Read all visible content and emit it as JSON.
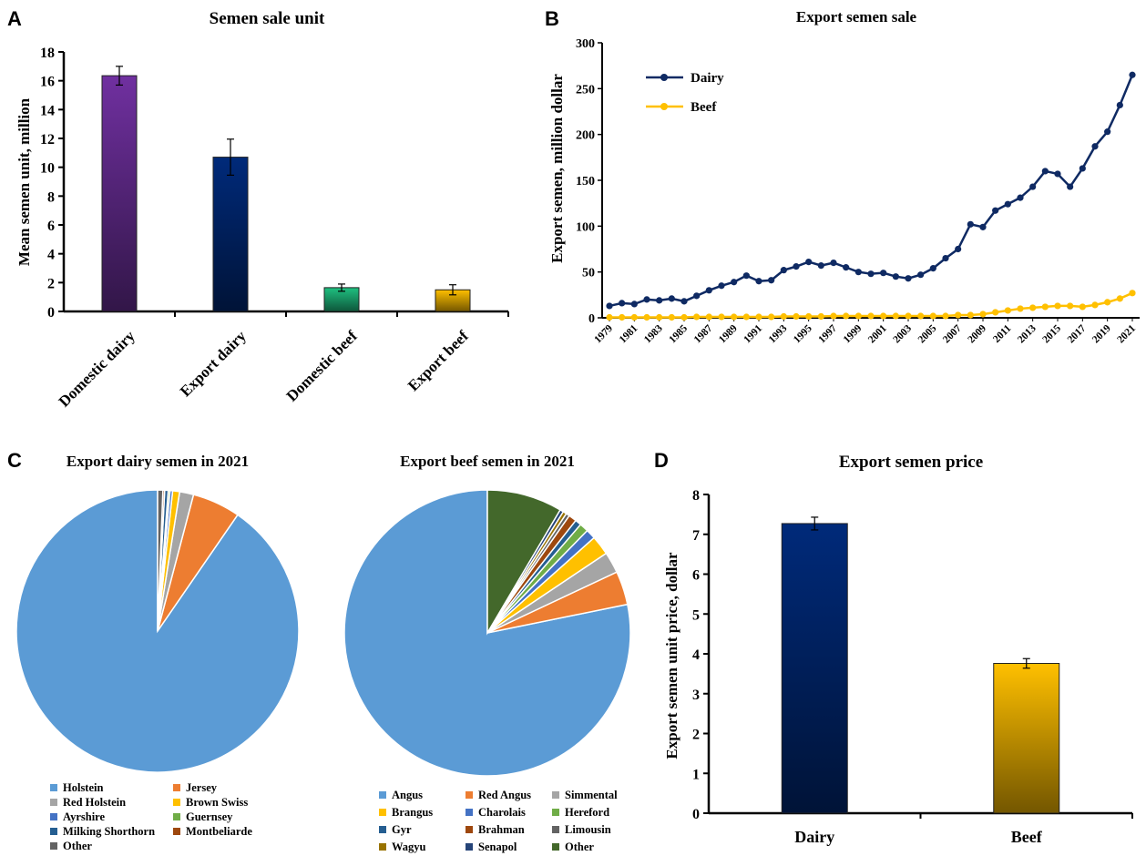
{
  "colors": {
    "purple": "#7030a0",
    "navy": "#002a7a",
    "green": "#1fc080",
    "gold": "#ffc000",
    "line_navy": "#0f2a63",
    "line_gold": "#ffc000"
  },
  "panels": {
    "a": {
      "letter": "A"
    },
    "b": {
      "letter": "B"
    },
    "c": {
      "letter": "C"
    },
    "d": {
      "letter": "D"
    }
  },
  "chart_data": [
    {
      "id": "A",
      "type": "bar",
      "title": "Semen sale unit",
      "ylabel": "Mean semen unit, million",
      "categories": [
        "Domestic dairy",
        "Export dairy",
        "Domestic beef",
        "Export beef"
      ],
      "values": [
        16.35,
        10.7,
        1.65,
        1.5
      ],
      "errors": [
        0.65,
        1.25,
        0.25,
        0.35
      ],
      "ylim": [
        0,
        18
      ],
      "yticks": [
        0,
        2,
        4,
        6,
        8,
        10,
        12,
        14,
        16,
        18
      ],
      "colors": [
        "#7030a0",
        "#002a7a",
        "#1fc080",
        "#ffc000"
      ]
    },
    {
      "id": "B",
      "type": "line",
      "title": "Export semen sale",
      "ylabel": "Export semen, million dollar",
      "ylim": [
        0,
        300
      ],
      "yticks": [
        0,
        50,
        100,
        150,
        200,
        250,
        300
      ],
      "xticks": [
        "1979",
        "1981",
        "1983",
        "1985",
        "1987",
        "1989",
        "1991",
        "1993",
        "1995",
        "1997",
        "1999",
        "2001",
        "2003",
        "2005",
        "2007",
        "2009",
        "2011",
        "2013",
        "2015",
        "2017",
        "2019",
        "2021"
      ],
      "x": [
        1979,
        1980,
        1981,
        1982,
        1983,
        1984,
        1985,
        1986,
        1987,
        1988,
        1989,
        1990,
        1991,
        1992,
        1993,
        1994,
        1995,
        1996,
        1997,
        1998,
        1999,
        2000,
        2001,
        2002,
        2003,
        2004,
        2005,
        2006,
        2007,
        2008,
        2009,
        2010,
        2011,
        2012,
        2013,
        2014,
        2015,
        2016,
        2017,
        2018,
        2019,
        2020,
        2021
      ],
      "legend_position": "top-left",
      "series": [
        {
          "name": "Dairy",
          "color": "#0f2a63",
          "values": [
            13,
            16,
            15,
            20,
            19,
            21,
            18,
            24,
            30,
            35,
            39,
            46,
            40,
            41,
            52,
            56,
            61,
            57,
            60,
            55,
            50,
            48,
            49,
            45,
            43,
            47,
            54,
            65,
            75,
            102,
            99,
            117,
            124,
            131,
            143,
            160,
            157,
            143,
            163,
            187,
            203,
            232,
            265
          ]
        },
        {
          "name": "Beef",
          "color": "#ffc000",
          "values": [
            0.5,
            0.5,
            0.5,
            0.5,
            0.5,
            0.5,
            0.5,
            1,
            1,
            1,
            1,
            1,
            1,
            1,
            1.5,
            1.5,
            1.5,
            1.5,
            2,
            2,
            2,
            2,
            2,
            2,
            2,
            2,
            2,
            2,
            3,
            3,
            4,
            6,
            8,
            10,
            11,
            12,
            13,
            13,
            12,
            14,
            17,
            21,
            27
          ]
        }
      ]
    },
    {
      "id": "C1",
      "type": "pie",
      "title": "Export dairy semen in 2021",
      "labels": [
        "Holstein",
        "Jersey",
        "Red Holstein",
        "Brown Swiss",
        "Ayrshire",
        "Guernsey",
        "Milking Shorthorn",
        "Montbeliarde",
        "Other"
      ],
      "values": [
        90.4,
        5.5,
        1.6,
        0.8,
        0.3,
        0.2,
        0.4,
        0.2,
        0.6
      ],
      "colors": [
        "#5b9bd5",
        "#ed7d31",
        "#a5a5a5",
        "#ffc000",
        "#4472c4",
        "#70ad47",
        "#255e91",
        "#9e480e",
        "#636363"
      ]
    },
    {
      "id": "C2",
      "type": "pie",
      "title": "Export beef semen in 2021",
      "labels": [
        "Angus",
        "Red Angus",
        "Simmental",
        "Brangus",
        "Charolais",
        "Hereford",
        "Gyr",
        "Brahman",
        "Limousin",
        "Wagyu",
        "Senapol",
        "Other"
      ],
      "values": [
        78.2,
        3.8,
        2.4,
        2.2,
        1.1,
        1.0,
        0.7,
        0.9,
        0.4,
        0.4,
        0.4,
        8.5
      ],
      "colors": [
        "#5b9bd5",
        "#ed7d31",
        "#a5a5a5",
        "#ffc000",
        "#4472c4",
        "#70ad47",
        "#255e91",
        "#9e480e",
        "#636363",
        "#997300",
        "#264478",
        "#43682b"
      ]
    },
    {
      "id": "D",
      "type": "bar",
      "title": "Export semen price",
      "ylabel": "Export semen unit price, dollar",
      "categories": [
        "Dairy",
        "Beef"
      ],
      "values": [
        7.27,
        3.76
      ],
      "errors": [
        0.16,
        0.12
      ],
      "ylim": [
        0,
        8
      ],
      "yticks": [
        0,
        1,
        2,
        3,
        4,
        5,
        6,
        7,
        8
      ],
      "colors": [
        "#002a7a",
        "#ffc000"
      ]
    }
  ]
}
